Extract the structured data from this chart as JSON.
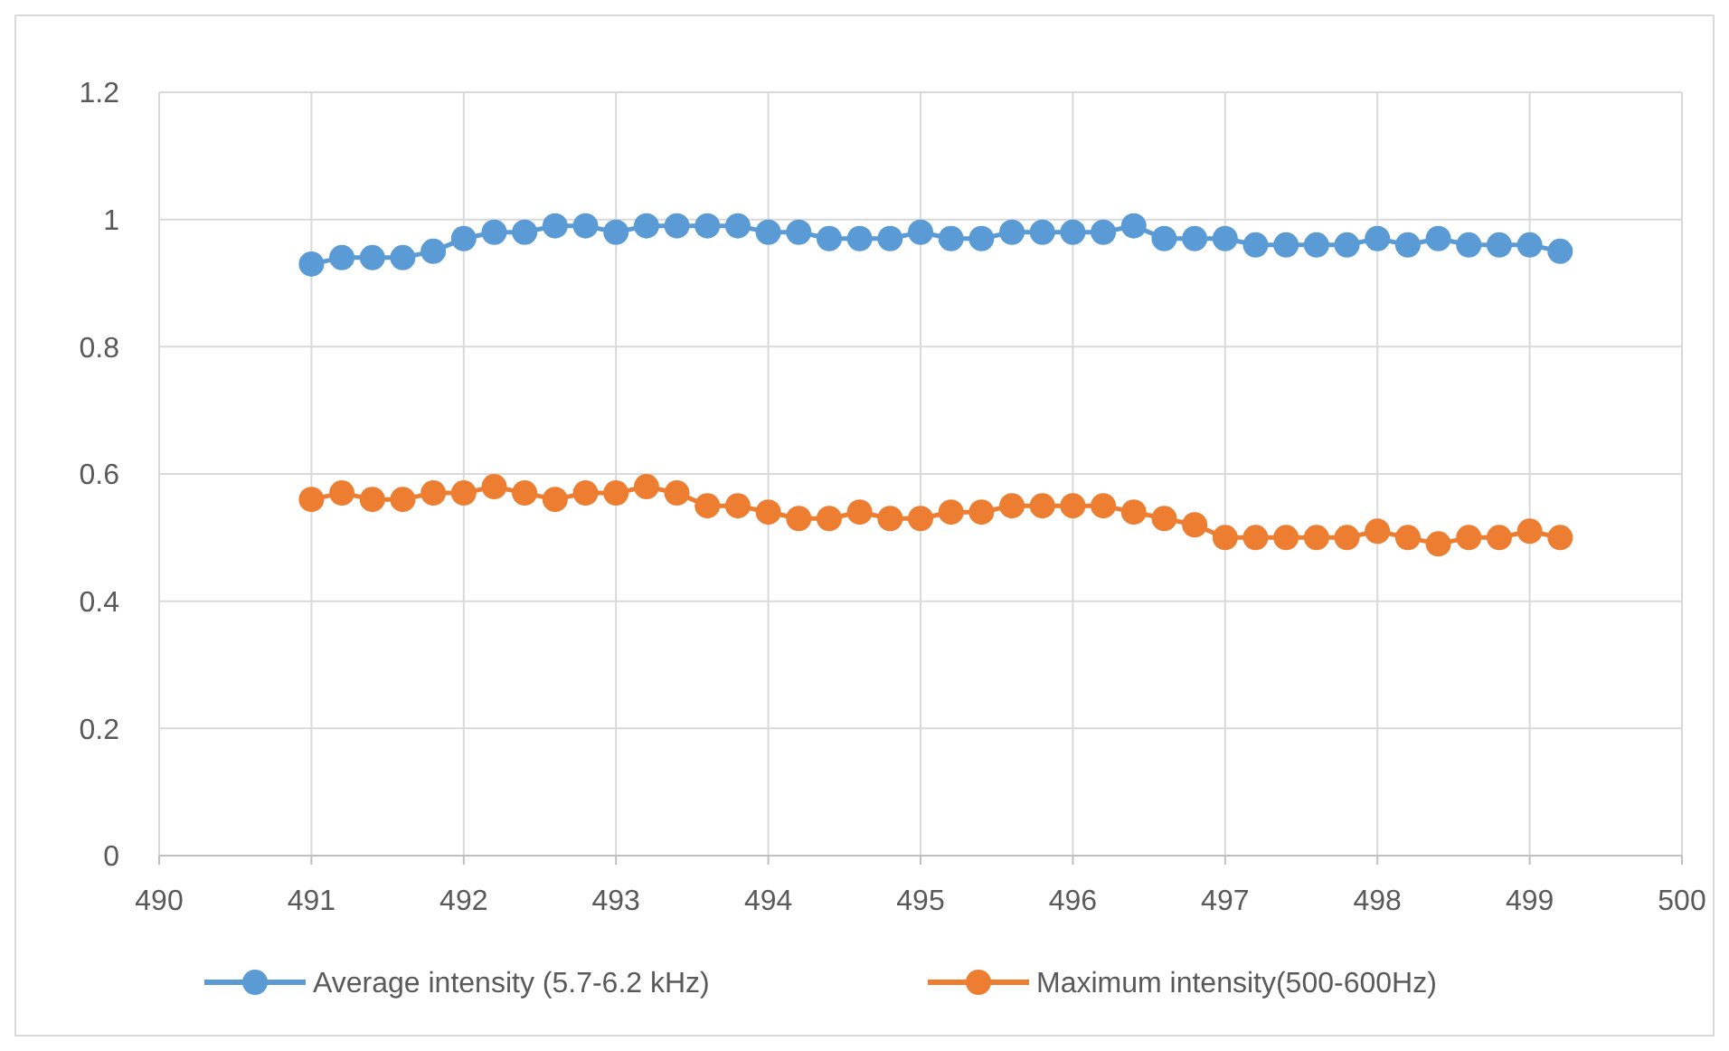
{
  "chart_data": {
    "type": "line",
    "x": [
      491,
      491.2,
      491.4,
      491.6,
      491.8,
      492,
      492.2,
      492.4,
      492.6,
      492.8,
      493,
      493.2,
      493.4,
      493.6,
      493.8,
      494,
      494.2,
      494.4,
      494.6,
      494.8,
      495,
      495.2,
      495.4,
      495.6,
      495.8,
      496,
      496.2,
      496.4,
      496.6,
      496.8,
      497,
      497.2,
      497.4,
      497.6,
      497.8,
      498,
      498.2,
      498.4,
      498.6,
      498.8,
      499,
      499.2
    ],
    "series": [
      {
        "name": "Average intensity (5.7-6.2 kHz)",
        "color": "#5b9bd5",
        "values": [
          0.93,
          0.94,
          0.94,
          0.94,
          0.95,
          0.97,
          0.98,
          0.98,
          0.99,
          0.99,
          0.98,
          0.99,
          0.99,
          0.99,
          0.99,
          0.98,
          0.98,
          0.97,
          0.97,
          0.97,
          0.98,
          0.97,
          0.97,
          0.98,
          0.98,
          0.98,
          0.98,
          0.99,
          0.97,
          0.97,
          0.97,
          0.96,
          0.96,
          0.96,
          0.96,
          0.97,
          0.96,
          0.97,
          0.96,
          0.96,
          0.96,
          0.95
        ]
      },
      {
        "name": "Maximum intensity(500-600Hz)",
        "color": "#ed7d31",
        "values": [
          0.56,
          0.57,
          0.56,
          0.56,
          0.57,
          0.57,
          0.58,
          0.57,
          0.56,
          0.57,
          0.57,
          0.58,
          0.57,
          0.55,
          0.55,
          0.54,
          0.53,
          0.53,
          0.54,
          0.53,
          0.53,
          0.54,
          0.54,
          0.55,
          0.55,
          0.55,
          0.55,
          0.54,
          0.53,
          0.52,
          0.5,
          0.5,
          0.5,
          0.5,
          0.5,
          0.51,
          0.5,
          0.49,
          0.5,
          0.5,
          0.51,
          0.5
        ]
      }
    ],
    "xlim": [
      490,
      500
    ],
    "xticks": [
      490,
      491,
      492,
      493,
      494,
      495,
      496,
      497,
      498,
      499,
      500
    ],
    "ylim": [
      0,
      1.2
    ],
    "yticks": [
      0,
      0.2,
      0.4,
      0.6,
      0.8,
      1,
      1.2
    ],
    "grid": true,
    "legend": "bottom",
    "marker": "circle",
    "line_style": "solid"
  }
}
